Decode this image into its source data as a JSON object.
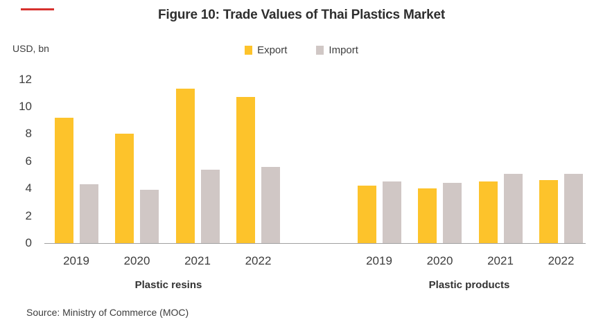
{
  "title": "Figure 10: Trade Values of Thai Plastics Market",
  "y_axis_unit_label": "USD, bn",
  "legend": {
    "export_label": "Export",
    "import_label": "Import"
  },
  "source": "Source: Ministry of Commerce (MOC)",
  "colors": {
    "export": "#fdc32b",
    "import": "#d0c7c5",
    "accent_dash": "#d7312e",
    "axis_line": "#a0a0a0",
    "text": "#3d3d3d"
  },
  "chart_data": {
    "type": "bar",
    "title": "Figure 10: Trade Values of Thai Plastics Market",
    "ylabel": "USD, bn",
    "ylim": [
      0,
      12
    ],
    "y_ticks": [
      0,
      2,
      4,
      6,
      8,
      10,
      12
    ],
    "grid": false,
    "legend_position": "top-center",
    "categories": [
      "2019",
      "2020",
      "2021",
      "2022"
    ],
    "panels": [
      {
        "label": "Plastic resins",
        "series": [
          {
            "name": "Export",
            "values": [
              9.2,
              8.0,
              11.3,
              10.7
            ]
          },
          {
            "name": "Import",
            "values": [
              4.3,
              3.9,
              5.4,
              5.6
            ]
          }
        ]
      },
      {
        "label": "Plastic products",
        "series": [
          {
            "name": "Export",
            "values": [
              4.2,
              4.0,
              4.5,
              4.6
            ]
          },
          {
            "name": "Import",
            "values": [
              4.5,
              4.4,
              5.1,
              5.1
            ]
          }
        ]
      }
    ]
  }
}
